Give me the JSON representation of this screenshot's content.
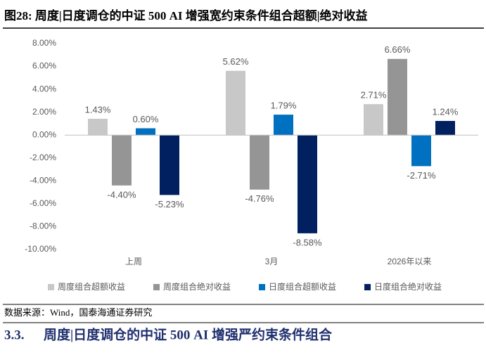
{
  "chart_data": {
    "type": "bar",
    "title": "图28:  周度|日度调仓的中证 500 AI 增强宽约束条件组合超额|绝对收益",
    "categories": [
      "上周",
      "3月",
      "2026年以来"
    ],
    "series": [
      {
        "name": "周度组合超额收益",
        "color": "#c8c8c8",
        "values": [
          1.43,
          5.62,
          2.71
        ],
        "value_labels": [
          "1.43%",
          "5.62%",
          "2.71%"
        ]
      },
      {
        "name": "周度组合绝对收益",
        "color": "#959595",
        "values": [
          -4.4,
          -4.76,
          6.66
        ],
        "value_labels": [
          "-4.40%",
          "-4.76%",
          "6.66%"
        ]
      },
      {
        "name": "日度组合超额收益",
        "color": "#0070c0",
        "values": [
          0.6,
          1.79,
          -2.71
        ],
        "value_labels": [
          "0.60%",
          "1.79%",
          "-2.71%"
        ]
      },
      {
        "name": "日度组合绝对收益",
        "color": "#002060",
        "values": [
          -5.23,
          -8.58,
          1.24
        ],
        "value_labels": [
          "-5.23%",
          "-8.58%",
          "1.24%"
        ]
      }
    ],
    "ylim": [
      -10,
      8
    ],
    "yticks": [
      {
        "value": 8,
        "label": "8.00%"
      },
      {
        "value": 6,
        "label": "6.00%"
      },
      {
        "value": 4,
        "label": "4.00%"
      },
      {
        "value": 2,
        "label": "2.00%"
      },
      {
        "value": 0,
        "label": "0.00%"
      },
      {
        "value": -2,
        "label": "-2.00%"
      },
      {
        "value": -4,
        "label": "-4.00%"
      },
      {
        "value": -6,
        "label": "-6.00%"
      },
      {
        "value": -8,
        "label": "-8.00%"
      },
      {
        "value": -10,
        "label": "-10.00%"
      }
    ],
    "grid": false,
    "legend": "bottom"
  },
  "source": "数据来源：Wind，国泰海通证券研究",
  "section": {
    "number": "3.3.",
    "title": "周度|日度调仓的中证 500 AI 增强严约束条件组合"
  }
}
